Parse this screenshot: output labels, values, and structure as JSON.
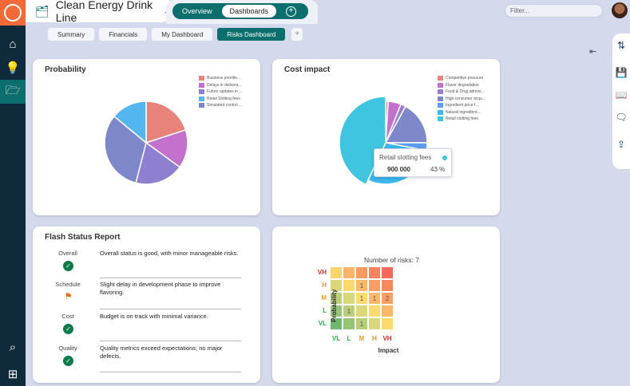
{
  "app": {
    "project": "Clean Energy Drink Line",
    "tabs": [
      "Overview",
      "Dashboards"
    ],
    "filter_placeholder": "Filter..."
  },
  "subtabs": [
    "Summary",
    "Financials",
    "My Dashboard",
    "Risks Dashboard"
  ],
  "probability": {
    "title": "Probability",
    "chart_data": {
      "type": "pie",
      "title": "Probability",
      "labels": [
        "Business prioritie...",
        "Delays in delivera...",
        "Future updates in ...",
        "Retail Slotting fees",
        "Simulated control ..."
      ],
      "values": [
        20,
        15,
        19,
        14,
        32
      ],
      "colors": [
        "#e8837b",
        "#c371cc",
        "#8f7fd0",
        "#53b6ef",
        "#7d87c9"
      ],
      "order": [
        0,
        1,
        2,
        4,
        3
      ]
    }
  },
  "cost": {
    "title": "Cost impact",
    "chart_data": {
      "type": "pie",
      "title": "Cost impact",
      "labels": [
        "Competitive pressure",
        "Flavor degradation",
        "Food & Drug admini...",
        "High consumer acqu...",
        "Ingredient price f...",
        "Natural ingredient...",
        "Retail slotting fees"
      ],
      "values": [
        1,
        5,
        2,
        17,
        3,
        29,
        43
      ],
      "colors": [
        "#e8837b",
        "#c371cc",
        "#9a7fd0",
        "#7d87c9",
        "#5d9cf0",
        "#3cb8ee",
        "#3fc5df"
      ]
    },
    "tooltip": {
      "label": "Retail slotting fees",
      "value": "900 000",
      "percent": "43 %"
    }
  },
  "flash": {
    "title": "Flash Status Report",
    "rows": [
      {
        "label": "Overall",
        "status": "good",
        "text": "Overall status is good, with minor manageable risks."
      },
      {
        "label": "Schedule",
        "status": "flag",
        "text": "Slight delay in development phase to improve flavoring."
      },
      {
        "label": "Cost",
        "status": "good",
        "text": "Budget is on track with minimal variance."
      },
      {
        "label": "Quality",
        "status": "good",
        "text": "Quality metrics exceed expectations; no major defects."
      }
    ]
  },
  "matrix": {
    "title": "Number of risks: 7",
    "xlabel": "Impact",
    "ylabel": "Probability",
    "levels": [
      "VL",
      "L",
      "M",
      "H",
      "VH"
    ],
    "level_colors": [
      "#22b33a",
      "#22b33a",
      "#e8a020",
      "#e88a30",
      "#d02828"
    ],
    "counts": [
      [
        "",
        "",
        "",
        "",
        ""
      ],
      [
        "",
        "",
        "1",
        "",
        ""
      ],
      [
        "",
        "",
        "1",
        "1",
        "2"
      ],
      [
        "",
        "1",
        "",
        "",
        ""
      ],
      [
        "",
        "",
        "1",
        "",
        ""
      ]
    ],
    "cell_colors": [
      [
        "#fbd56a",
        "#fab56a",
        "#f99a62",
        "#f7845e",
        "#f46a5c"
      ],
      [
        "#d9d77a",
        "#fbd96c",
        "#fab86a",
        "#f99d64",
        "#f7875e"
      ],
      [
        "#b9cf78",
        "#d8d77a",
        "#fbdb6e",
        "#fab96a",
        "#f99e64"
      ],
      [
        "#96c578",
        "#b8cf78",
        "#d9d87a",
        "#fbdb6e",
        "#fab96a"
      ],
      [
        "#6fb870",
        "#96c578",
        "#b8cf78",
        "#d9d87a",
        "#fbd96c"
      ]
    ]
  }
}
